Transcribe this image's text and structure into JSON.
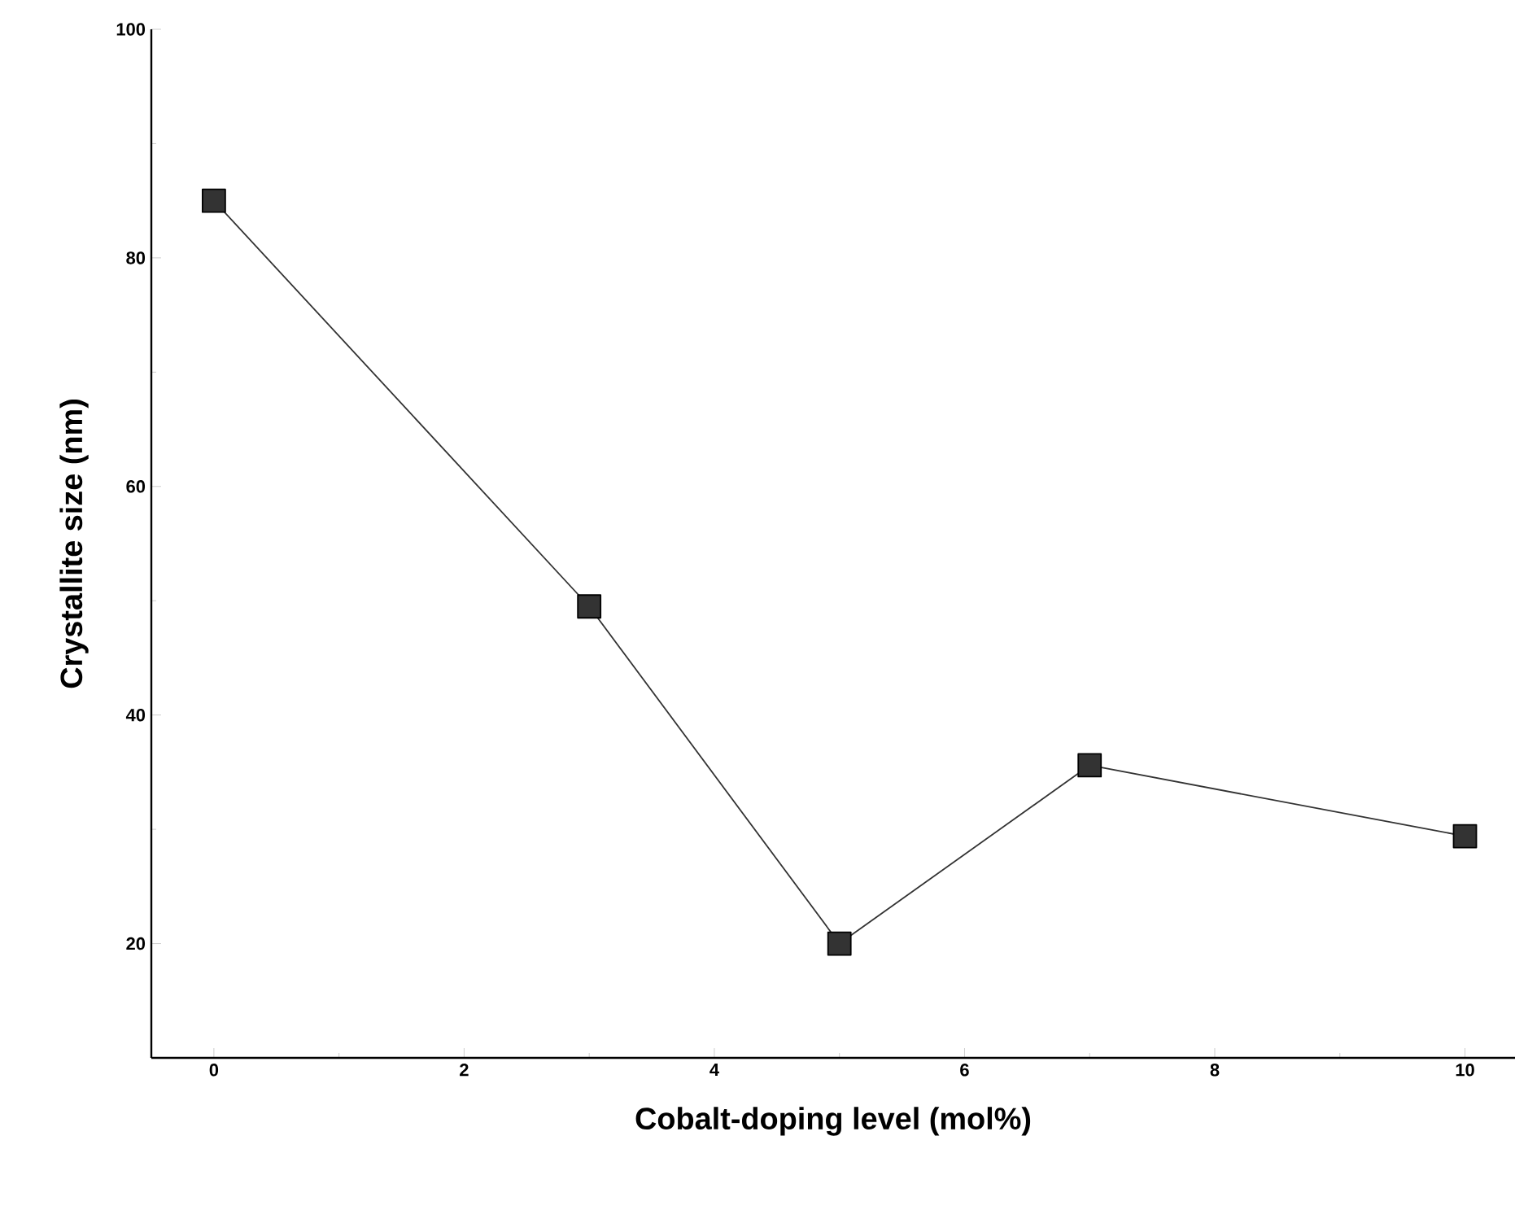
{
  "chart_data": {
    "type": "line",
    "xlabel": "Cobalt-doping level (mol%)",
    "ylabel": "Crystallite size (nm)",
    "x": [
      0,
      3,
      5,
      7,
      10
    ],
    "series": [
      {
        "color": "#333333",
        "values": [
          85,
          49.5,
          20,
          35.6,
          29.4
        ]
      }
    ],
    "xlim": [
      -0.5,
      10.4
    ],
    "ylim": [
      10,
      100
    ],
    "xticks": [
      0,
      2,
      4,
      6,
      8,
      10
    ],
    "yticks": [
      20,
      40,
      60,
      80,
      100
    ],
    "marker": "square",
    "line_style": "solid",
    "grid": false
  }
}
